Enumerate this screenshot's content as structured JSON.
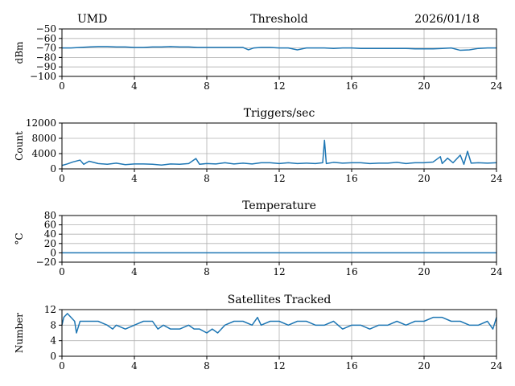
{
  "header": {
    "station": "UMD",
    "date": "2026/01/18"
  },
  "chart_data": [
    {
      "type": "line",
      "title": "Threshold",
      "xlabel": "",
      "ylabel": "dBm",
      "xlim": [
        0,
        24
      ],
      "ylim": [
        -100,
        -50
      ],
      "xticks": [
        0,
        4,
        8,
        12,
        16,
        20,
        24
      ],
      "yticks": [
        -100,
        -90,
        -80,
        -70,
        -60,
        -50
      ],
      "ytick_labels": [
        "−100",
        "−90",
        "−80",
        "−70",
        "−60",
        "−50"
      ],
      "grid": true,
      "color": "#1f77b4",
      "series": [
        {
          "x": [
            0,
            0.5,
            1,
            1.5,
            2,
            2.5,
            3,
            3.5,
            4,
            4.5,
            5,
            5.5,
            6,
            6.5,
            7,
            7.5,
            8,
            8.5,
            9,
            9.5,
            10,
            10.3,
            10.6,
            11,
            11.5,
            12,
            12.5,
            13,
            13.5,
            14,
            14.5,
            15,
            15.5,
            16,
            16.5,
            17,
            17.5,
            18,
            18.5,
            19,
            19.5,
            20,
            20.5,
            21,
            21.5,
            22,
            22.5,
            23,
            23.5,
            24
          ],
          "y": [
            -70,
            -70,
            -69.5,
            -69,
            -68.5,
            -68.5,
            -69,
            -69,
            -69.5,
            -69.5,
            -69,
            -69,
            -68.5,
            -69,
            -69,
            -69.5,
            -69.5,
            -69.5,
            -69.5,
            -69.5,
            -69.5,
            -72,
            -70,
            -69.5,
            -69.5,
            -70,
            -70,
            -72,
            -70,
            -70,
            -70,
            -70.5,
            -70,
            -70,
            -70.5,
            -70.5,
            -70.5,
            -70.5,
            -70.5,
            -70.5,
            -71,
            -71,
            -71,
            -70.5,
            -70,
            -72.5,
            -72,
            -70.5,
            -70,
            -70
          ]
        }
      ]
    },
    {
      "type": "line",
      "title": "Triggers/sec",
      "xlabel": "",
      "ylabel": "Count",
      "xlim": [
        0,
        24
      ],
      "ylim": [
        0,
        12000
      ],
      "xticks": [
        0,
        4,
        8,
        12,
        16,
        20,
        24
      ],
      "yticks": [
        0,
        4000,
        8000,
        12000
      ],
      "ytick_labels": [
        "0",
        "4000",
        "8000",
        "12000"
      ],
      "grid": true,
      "color": "#1f77b4",
      "series": [
        {
          "x": [
            0,
            0.3,
            0.6,
            1,
            1.2,
            1.5,
            2,
            2.5,
            3,
            3.5,
            4,
            4.5,
            5,
            5.5,
            6,
            6.5,
            7,
            7.4,
            7.6,
            8,
            8.5,
            9,
            9.5,
            10,
            10.5,
            11,
            11.5,
            12,
            12.5,
            13,
            13.5,
            14,
            14.4,
            14.5,
            14.6,
            15,
            15.5,
            16,
            16.5,
            17,
            17.5,
            18,
            18.5,
            19,
            19.5,
            20,
            20.5,
            20.9,
            21,
            21.3,
            21.6,
            22,
            22.2,
            22.4,
            22.6,
            23,
            23.5,
            24
          ],
          "y": [
            900,
            1300,
            1800,
            2300,
            1200,
            2000,
            1400,
            1200,
            1500,
            1100,
            1300,
            1300,
            1200,
            1000,
            1300,
            1200,
            1400,
            2700,
            1200,
            1400,
            1300,
            1600,
            1300,
            1500,
            1300,
            1600,
            1600,
            1400,
            1600,
            1400,
            1500,
            1400,
            1600,
            7500,
            1400,
            1700,
            1500,
            1600,
            1600,
            1400,
            1500,
            1500,
            1700,
            1400,
            1600,
            1600,
            1800,
            3200,
            1400,
            2800,
            1600,
            3600,
            1200,
            4600,
            1500,
            1600,
            1500,
            1600
          ]
        }
      ]
    },
    {
      "type": "line",
      "title": "Temperature",
      "xlabel": "",
      "ylabel": "°C",
      "xlim": [
        0,
        24
      ],
      "ylim": [
        -20,
        80
      ],
      "xticks": [
        0,
        4,
        8,
        12,
        16,
        20,
        24
      ],
      "yticks": [
        -20,
        0,
        20,
        40,
        60,
        80
      ],
      "ytick_labels": [
        "−20",
        "0",
        "20",
        "40",
        "60",
        "80"
      ],
      "grid": true,
      "color": "#1f77b4",
      "series": [
        {
          "x": [
            0,
            24
          ],
          "y": [
            0,
            0
          ]
        }
      ]
    },
    {
      "type": "line",
      "title": "Satellites Tracked",
      "xlabel": "",
      "ylabel": "Number",
      "xlim": [
        0,
        24
      ],
      "ylim": [
        0,
        12
      ],
      "xticks": [
        0,
        4,
        8,
        12,
        16,
        20,
        24
      ],
      "yticks": [
        0,
        4,
        8,
        12
      ],
      "ytick_labels": [
        "0",
        "4",
        "8",
        "12"
      ],
      "grid": true,
      "color": "#1f77b4",
      "series": [
        {
          "x": [
            0,
            0.1,
            0.3,
            0.5,
            0.7,
            0.8,
            1,
            1.5,
            2,
            2.5,
            2.8,
            3,
            3.5,
            4,
            4.5,
            5,
            5.3,
            5.6,
            6,
            6.5,
            7,
            7.3,
            7.6,
            8,
            8.3,
            8.6,
            9,
            9.5,
            10,
            10.5,
            10.8,
            11,
            11.5,
            12,
            12.5,
            13,
            13.5,
            14,
            14.5,
            15,
            15.5,
            16,
            16.5,
            17,
            17.5,
            18,
            18.5,
            19,
            19.5,
            20,
            20.5,
            21,
            21.5,
            22,
            22.5,
            23,
            23.5,
            23.8,
            24
          ],
          "y": [
            8,
            10,
            11,
            10,
            9,
            6,
            9,
            9,
            9,
            8,
            7,
            8,
            7,
            8,
            9,
            9,
            7,
            8,
            7,
            7,
            8,
            7,
            7,
            6,
            7,
            6,
            8,
            9,
            9,
            8,
            10,
            8,
            9,
            9,
            8,
            9,
            9,
            8,
            8,
            9,
            7,
            8,
            8,
            7,
            8,
            8,
            9,
            8,
            9,
            9,
            10,
            10,
            9,
            9,
            8,
            8,
            9,
            7,
            10
          ]
        }
      ]
    }
  ]
}
